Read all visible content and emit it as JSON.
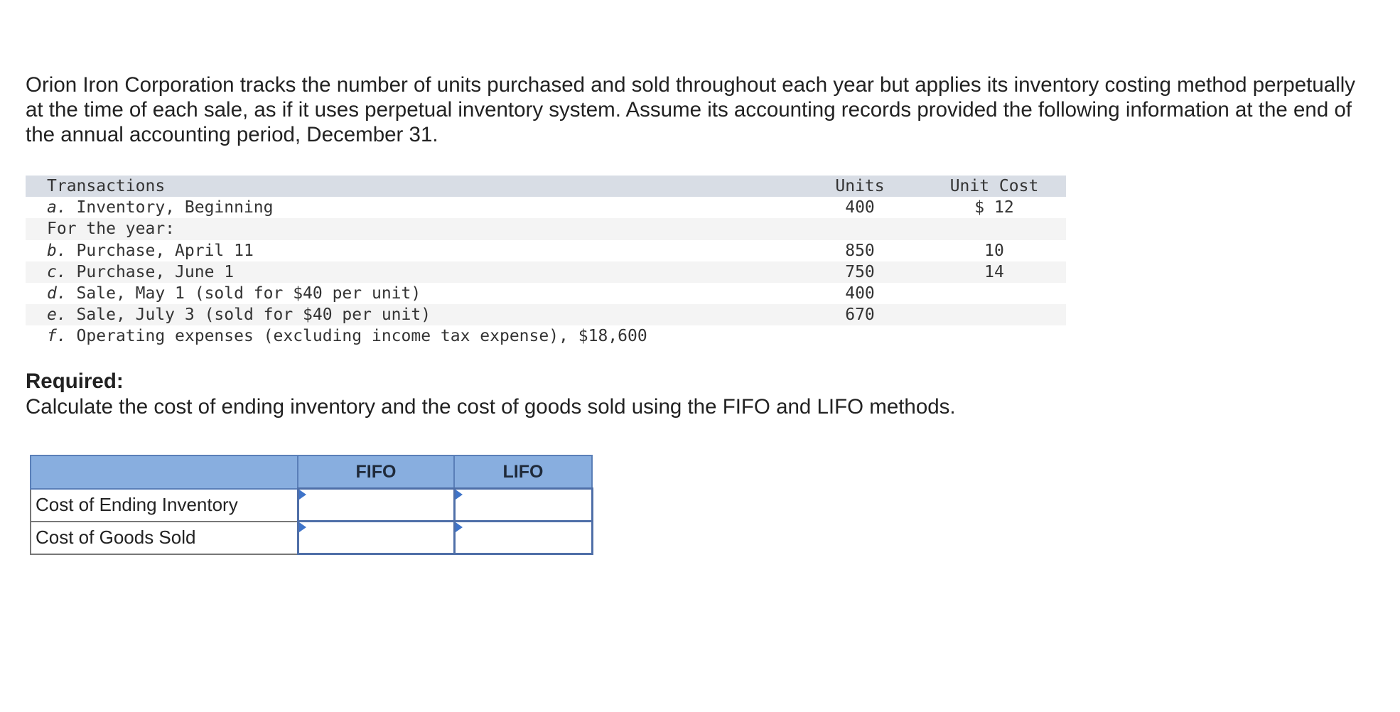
{
  "intro_text": "Orion Iron Corporation tracks the number of units purchased and sold throughout each year but applies its inventory costing method perpetually at the time of each sale, as if it uses perpetual inventory system. Assume its accounting records provided the following information at the end of the annual accounting period, December 31.",
  "transactions_table": {
    "headers": {
      "transactions": "Transactions",
      "units": "Units",
      "unit_cost": "Unit Cost"
    },
    "rows": [
      {
        "letter": "a.",
        "description": " Inventory, Beginning",
        "units": "400",
        "unit_cost": "$ 12"
      },
      {
        "letter": "",
        "description": "For the year:",
        "units": "",
        "unit_cost": ""
      },
      {
        "letter": "b.",
        "description": " Purchase, April 11",
        "units": "850",
        "unit_cost": "10"
      },
      {
        "letter": "c.",
        "description": " Purchase, June 1",
        "units": "750",
        "unit_cost": "14"
      },
      {
        "letter": "d.",
        "description": " Sale, May 1 (sold for $40 per unit)",
        "units": "400",
        "unit_cost": ""
      },
      {
        "letter": "e.",
        "description": " Sale, July 3 (sold for $40 per unit)",
        "units": "670",
        "unit_cost": ""
      },
      {
        "letter": "f.",
        "description": " Operating expenses (excluding income tax expense), $18,600",
        "units": "",
        "unit_cost": ""
      }
    ]
  },
  "required": {
    "title": "Required:",
    "text": "Calculate the cost of ending inventory and the cost of goods sold using the FIFO and LIFO methods."
  },
  "answer_table": {
    "headers": {
      "corner": "",
      "fifo": "FIFO",
      "lifo": "LIFO"
    },
    "rows": [
      {
        "label": "Cost of Ending Inventory",
        "fifo_value": "",
        "lifo_value": ""
      },
      {
        "label": "Cost of Goods Sold",
        "fifo_value": "",
        "lifo_value": ""
      }
    ]
  },
  "colors": {
    "table_header_bg": "#d8dde5",
    "row_shade_bg": "#f4f4f4",
    "answer_header_bg": "#88aedf",
    "input_border": "#4f6fa8",
    "input_marker": "#3f74c9"
  }
}
